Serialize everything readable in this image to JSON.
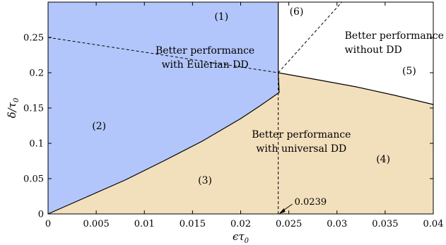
{
  "chart_data": {
    "type": "area",
    "xlabel": "ϵτ",
    "xlabel_sub": "0",
    "ylabel": "δ/τ",
    "ylabel_sub": "0",
    "xlim": [
      0,
      0.04
    ],
    "ylim": [
      0,
      0.3
    ],
    "x_ticks": [
      "0",
      "0.005",
      "0.01",
      "0.015",
      "0.02",
      "0.025",
      "0.03",
      "0.035",
      "0.04"
    ],
    "y_ticks": [
      "0",
      "0.05",
      "0.1",
      "0.15",
      "0.2",
      "0.25"
    ],
    "colors": {
      "eulerian": "#b3c6fb",
      "universal": "#f2dfbc",
      "none": "#ffffff",
      "line": "#000000"
    },
    "boundaries": {
      "eulerian_universal": [
        [
          0,
          0
        ],
        [
          0.004,
          0.024
        ],
        [
          0.008,
          0.048
        ],
        [
          0.012,
          0.075
        ],
        [
          0.016,
          0.103
        ],
        [
          0.02,
          0.135
        ],
        [
          0.022,
          0.153
        ],
        [
          0.024,
          0.172
        ],
        [
          0.0239,
          0.2
        ]
      ],
      "universal_none": [
        [
          0.0239,
          0.2
        ],
        [
          0.028,
          0.19
        ],
        [
          0.032,
          0.18
        ],
        [
          0.036,
          0.168
        ],
        [
          0.04,
          0.155
        ]
      ],
      "eulerian_none_x": 0.0239
    },
    "dashed": [
      [
        [
          0,
          0.25
        ],
        [
          0.0239,
          0.2
        ]
      ],
      [
        [
          0.0239,
          0.2
        ],
        [
          0.0305,
          0.3
        ]
      ],
      [
        [
          0.0239,
          0.2
        ],
        [
          0.0239,
          0
        ]
      ]
    ],
    "regions": [
      {
        "label": "(1)",
        "x": 0.018,
        "y": 0.28
      },
      {
        "label": "(2)",
        "x": 0.0053,
        "y": 0.125
      },
      {
        "label": "(3)",
        "x": 0.0163,
        "y": 0.048
      },
      {
        "label": "(4)",
        "x": 0.0348,
        "y": 0.078
      },
      {
        "label": "(5)",
        "x": 0.0375,
        "y": 0.203
      },
      {
        "label": "(6)",
        "x": 0.0258,
        "y": 0.287
      }
    ],
    "annotations": [
      {
        "lines": [
          "Better performance",
          "with Eulerian DD"
        ],
        "x": 0.0163,
        "y": 0.227,
        "anchor": "middle"
      },
      {
        "lines": [
          "Better performance",
          "without DD"
        ],
        "x": 0.0308,
        "y": 0.248,
        "anchor": "start"
      },
      {
        "lines": [
          "Better performance",
          "with universal DD"
        ],
        "x": 0.0263,
        "y": 0.108,
        "anchor": "middle"
      }
    ],
    "marker": {
      "label": "0.0239",
      "x": 0.0239,
      "y": 0
    }
  }
}
